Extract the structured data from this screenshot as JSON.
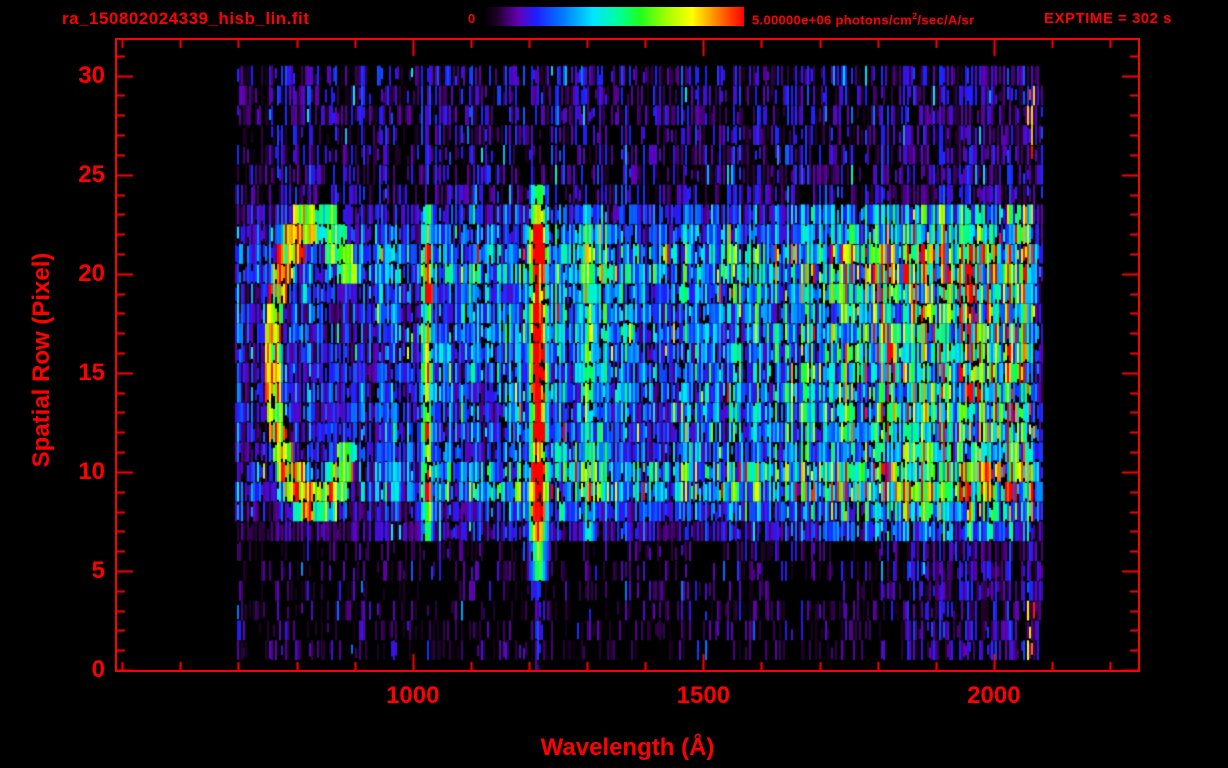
{
  "header": {
    "title": "ra_150802024339_hisb_lin.fit",
    "exptime": "EXPTIME = 302 s"
  },
  "colorbar": {
    "min_label": "0",
    "max_label_pre": "5.00000e+06 photons/cm",
    "max_label_sup": "2",
    "max_label_post": "/sec/A/sr"
  },
  "colors": {
    "accent": "#ff0000",
    "background": "#000000"
  },
  "chart_data": {
    "type": "heatmap",
    "title": "ra_150802024339_hisb_lin.fit",
    "xlabel": "Wavelength (Å)",
    "ylabel": "Spatial Row (Pixel)",
    "x_range": [
      491,
      2248
    ],
    "y_range": [
      0,
      31.8
    ],
    "x_ticks": [
      1000,
      1500,
      2000
    ],
    "x_minor_step": 100,
    "y_ticks": [
      0,
      5,
      10,
      15,
      20,
      25,
      30
    ],
    "y_minor_step": 1,
    "value_min": 0,
    "value_max": 5000000,
    "value_units": "photons/cm2/sec/A/sr",
    "exposure_seconds": 302,
    "grid": false,
    "legend_position": "top-colorbar",
    "data_extent": {
      "w_min": 695,
      "w_max": 2085,
      "row_min": 0.5,
      "row_max": 30.5
    },
    "colormap": [
      [
        0.0,
        0,
        0,
        0
      ],
      [
        0.05,
        30,
        0,
        40
      ],
      [
        0.13,
        100,
        0,
        180
      ],
      [
        0.2,
        30,
        30,
        255
      ],
      [
        0.3,
        0,
        120,
        255
      ],
      [
        0.42,
        0,
        230,
        255
      ],
      [
        0.52,
        0,
        255,
        150
      ],
      [
        0.6,
        30,
        255,
        30
      ],
      [
        0.7,
        160,
        255,
        0
      ],
      [
        0.8,
        255,
        255,
        0
      ],
      [
        0.88,
        255,
        150,
        0
      ],
      [
        0.95,
        255,
        60,
        0
      ],
      [
        1.0,
        255,
        0,
        0
      ]
    ],
    "features": {
      "slit_band": {
        "row_min": 7,
        "row_max": 23,
        "base": 0.22,
        "dropout": 0.18,
        "row_boost": {
          "7": 0.55,
          "8": 0.9,
          "9": 1.45,
          "10": 1.4,
          "11": 0.95,
          "12": 1.0,
          "13": 1.05,
          "14": 1.1,
          "15": 1.1,
          "16": 1.05,
          "17": 1.15,
          "18": 1.1,
          "19": 1.15,
          "20": 1.4,
          "21": 1.35,
          "22": 1.0,
          "23": 0.75
        },
        "wave_profile": [
          [
            695,
            0.75
          ],
          [
            870,
            0.6
          ],
          [
            1000,
            0.8
          ],
          [
            1150,
            0.9
          ],
          [
            1300,
            1.0
          ],
          [
            1550,
            1.0
          ],
          [
            1650,
            1.2
          ],
          [
            1800,
            1.8
          ],
          [
            1950,
            2.1
          ],
          [
            2050,
            1.9
          ],
          [
            2075,
            0.8
          ],
          [
            2085,
            0.3
          ]
        ]
      },
      "upper_band": {
        "row_min": 24,
        "row_max": 30,
        "base": 0.1,
        "dropout": 0.55
      },
      "lower_band": {
        "row_min": 1,
        "row_max": 6,
        "base": 0.07,
        "dropout": 0.7
      },
      "right_speckle": {
        "w_min": 1850,
        "w_max": 2085,
        "base": 0.1,
        "dropout": 0.35
      },
      "emission_lines": [
        {
          "name": "H Lyman-beta 1025",
          "wavelength": 1025,
          "sigma": 6,
          "row_min": 7,
          "row_max": 23,
          "amp": 0.38,
          "core_rows": [
            9,
            21
          ],
          "core_amp": 0.52
        },
        {
          "name": "H Lyman-alpha 1216",
          "wavelength": 1216,
          "sigma": 9,
          "row_min": 5,
          "row_max": 24,
          "amp": 0.55,
          "core_rows": [
            7,
            22
          ],
          "core_amp": 1.0,
          "halo_amp": 0.14,
          "halo_row_min": 0
        },
        {
          "name": "OI 1304",
          "wavelength": 1304,
          "sigma": 6,
          "row_min": 7,
          "row_max": 23,
          "amp": 0.28,
          "core_rows": [
            9,
            21
          ],
          "core_amp": 0.36
        },
        {
          "name": "CII 1335",
          "wavelength": 1335,
          "sigma": 5,
          "row_min": 8,
          "row_max": 22,
          "amp": 0.13,
          "core_rows": [
            10,
            20
          ],
          "core_amp": 0.17
        }
      ],
      "ring": {
        "w_center": 832,
        "row_center": 15.5,
        "w_radius": 80,
        "row_radius": 7.7,
        "thickness": 0.17,
        "amp": 0.5,
        "gap_side": "right",
        "gap_half_rows": 4.2
      },
      "hot_edge": {
        "w_min": 2052,
        "w_max": 2072,
        "row_min": 1,
        "row_max": 30,
        "prob": 0.12,
        "amp_min": 0.8,
        "amp_max": 1.0
      }
    }
  }
}
